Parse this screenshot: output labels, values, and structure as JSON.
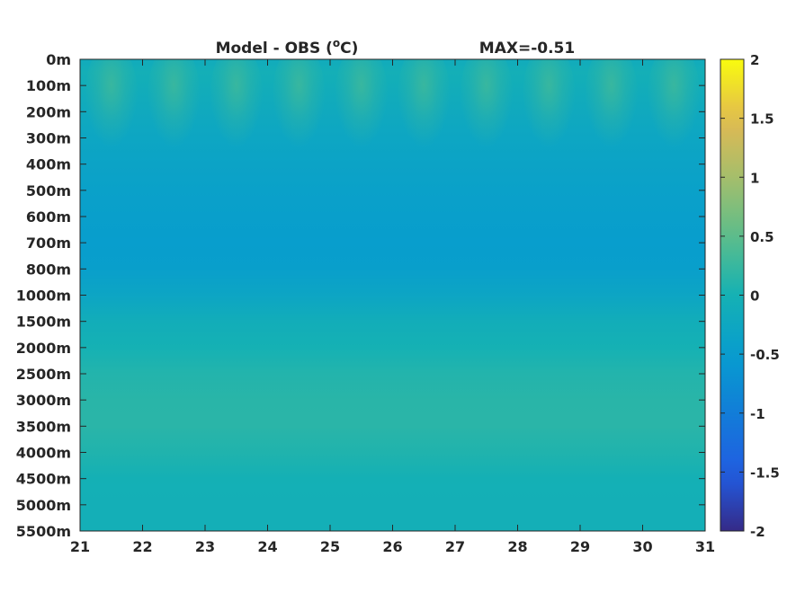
{
  "chart_data": {
    "type": "heatmap",
    "title": "Model - OBS (°C)",
    "title_parts": {
      "prefix": "Model - OBS (",
      "superscript": "o",
      "suffix": "C)"
    },
    "annotation": "MAX=-0.51",
    "xlabel": "",
    "ylabel": "",
    "x_range": [
      21,
      31
    ],
    "x_ticks": [
      "21",
      "22",
      "23",
      "24",
      "25",
      "26",
      "27",
      "28",
      "29",
      "30",
      "31"
    ],
    "y_ticks": [
      "0m",
      "100m",
      "200m",
      "300m",
      "400m",
      "500m",
      "600m",
      "700m",
      "800m",
      "1000m",
      "1500m",
      "2000m",
      "2500m",
      "3000m",
      "3500m",
      "4000m",
      "4500m",
      "5000m",
      "5500m"
    ],
    "depth_levels_m": [
      0,
      100,
      200,
      300,
      400,
      500,
      600,
      700,
      800,
      1000,
      1500,
      2000,
      2500,
      3000,
      3500,
      4000,
      4500,
      5000,
      5500
    ],
    "colorbar": {
      "range": [
        -2,
        2
      ],
      "ticks": [
        "2",
        "1.5",
        "1",
        "0.5",
        "0",
        "-0.5",
        "-1",
        "-1.5",
        "-2"
      ],
      "colormap": "parula"
    },
    "layer_values": [
      {
        "depth_m": 0,
        "value": -0.15
      },
      {
        "depth_m": 50,
        "value": -0.05
      },
      {
        "depth_m": 100,
        "value": -0.1
      },
      {
        "depth_m": 200,
        "value": -0.2
      },
      {
        "depth_m": 300,
        "value": -0.28
      },
      {
        "depth_m": 400,
        "value": -0.35
      },
      {
        "depth_m": 500,
        "value": -0.4
      },
      {
        "depth_m": 600,
        "value": -0.45
      },
      {
        "depth_m": 700,
        "value": -0.48
      },
      {
        "depth_m": 800,
        "value": -0.45
      },
      {
        "depth_m": 1000,
        "value": -0.3
      },
      {
        "depth_m": 1500,
        "value": -0.1
      },
      {
        "depth_m": 2000,
        "value": 0.0
      },
      {
        "depth_m": 2500,
        "value": 0.1
      },
      {
        "depth_m": 3000,
        "value": 0.14
      },
      {
        "depth_m": 3500,
        "value": 0.15
      },
      {
        "depth_m": 4000,
        "value": 0.08
      },
      {
        "depth_m": 4500,
        "value": -0.02
      },
      {
        "depth_m": 5000,
        "value": -0.05
      },
      {
        "depth_m": 5500,
        "value": -0.05
      }
    ],
    "upper_pulses": {
      "centers_x": [
        21.5,
        22.5,
        23.5,
        24.5,
        25.5,
        26.5,
        27.5,
        28.5,
        29.5,
        30.5
      ],
      "peak_depth_m": 100,
      "peak_value": 0.25
    },
    "grid": false
  }
}
